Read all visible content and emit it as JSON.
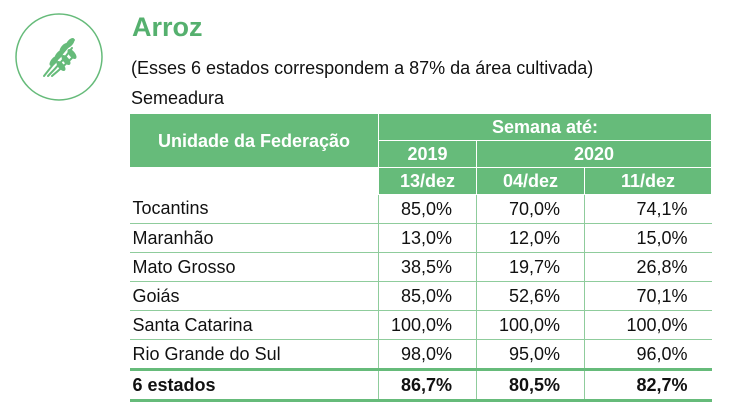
{
  "header": {
    "title": "Arroz",
    "subtitle": "(Esses 6 estados correspondem a 87% da área cultivada)",
    "section": "Semeadura",
    "icon": "rice-plant-icon",
    "accent_color": "#66bb7a"
  },
  "table": {
    "col_state": "Unidade da Federação",
    "group_header": "Semana até:",
    "year_a": "2019",
    "year_b": "2020",
    "date_1": "13/dez",
    "date_2": "04/dez",
    "date_3": "11/dez",
    "rows": [
      {
        "state": "Tocantins",
        "v1": "85,0%",
        "v2": "70,0%",
        "v3": "74,1%"
      },
      {
        "state": "Maranhão",
        "v1": "13,0%",
        "v2": "12,0%",
        "v3": "15,0%"
      },
      {
        "state": "Mato Grosso",
        "v1": "38,5%",
        "v2": "19,7%",
        "v3": "26,8%"
      },
      {
        "state": "Goiás",
        "v1": "85,0%",
        "v2": "52,6%",
        "v3": "70,1%"
      },
      {
        "state": "Santa Catarina",
        "v1": "100,0%",
        "v2": "100,0%",
        "v3": "100,0%"
      },
      {
        "state": "Rio Grande do Sul",
        "v1": "98,0%",
        "v2": "95,0%",
        "v3": "96,0%"
      }
    ],
    "total": {
      "state": "6 estados",
      "v1": "86,7%",
      "v2": "80,5%",
      "v3": "82,7%"
    }
  }
}
